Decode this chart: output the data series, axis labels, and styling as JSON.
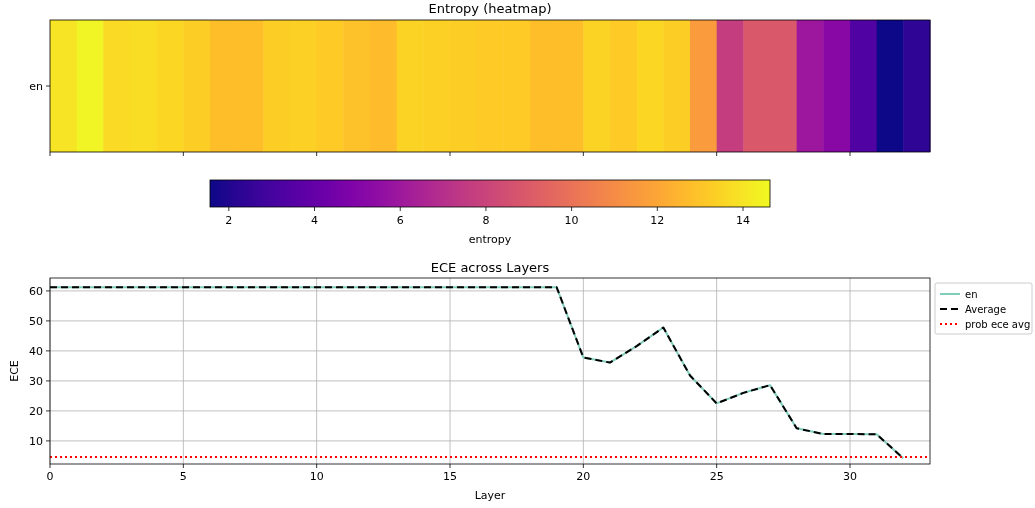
{
  "chart_data": [
    {
      "type": "heatmap",
      "title": "Entropy (heatmap)",
      "categories": [
        null,
        null,
        null,
        null,
        null,
        null,
        null,
        null,
        null,
        null,
        null,
        null,
        null,
        null,
        null,
        null,
        null,
        null,
        null,
        null,
        null,
        null,
        null,
        null,
        null,
        null,
        null,
        null,
        null,
        null,
        null,
        null,
        null
      ],
      "y_categories": [
        "en"
      ],
      "cells": [
        [
          14.0,
          14.5,
          13.7,
          13.8,
          13.6,
          13.3,
          12.8,
          12.8,
          13.3,
          13.4,
          13.2,
          12.9,
          12.7,
          13.5,
          13.4,
          13.3,
          13.2,
          13.2,
          12.8,
          12.8,
          13.5,
          13.2,
          13.6,
          13.3,
          11.6,
          7.7,
          8.9,
          8.9,
          5.9,
          5.2,
          3.3,
          1.6,
          2.3
        ]
      ],
      "clim": [
        1.56,
        14.63
      ],
      "cticks": [
        2,
        4,
        6,
        8,
        10,
        12,
        14
      ],
      "clabel": "entropy"
    },
    {
      "type": "line",
      "title": "ECE across Layers",
      "xlabel": "Layer",
      "ylabel": "ECE",
      "x": [
        0,
        1,
        2,
        3,
        4,
        5,
        6,
        7,
        8,
        9,
        10,
        11,
        12,
        13,
        14,
        15,
        16,
        17,
        18,
        19,
        20,
        21,
        22,
        23,
        24,
        25,
        26,
        27,
        28,
        29,
        30,
        31,
        32
      ],
      "series": [
        {
          "name": "en",
          "color": "#7fcdbb",
          "line_style": "solid",
          "values": [
            61.2,
            61.2,
            61.2,
            61.2,
            61.2,
            61.2,
            61.2,
            61.2,
            61.2,
            61.2,
            61.2,
            61.2,
            61.2,
            61.2,
            61.2,
            61.2,
            61.2,
            61.2,
            61.2,
            61.2,
            37.8,
            36.1,
            41.6,
            47.8,
            31.8,
            22.5,
            26.0,
            28.6,
            14.2,
            12.3,
            12.3,
            12.2,
            4.2
          ]
        },
        {
          "name": "Average",
          "color": "#000000",
          "line_style": "dashed",
          "values": [
            61.2,
            61.2,
            61.2,
            61.2,
            61.2,
            61.2,
            61.2,
            61.2,
            61.2,
            61.2,
            61.2,
            61.2,
            61.2,
            61.2,
            61.2,
            61.2,
            61.2,
            61.2,
            61.2,
            61.2,
            37.8,
            36.1,
            41.6,
            47.8,
            31.8,
            22.5,
            26.0,
            28.6,
            14.2,
            12.3,
            12.3,
            12.2,
            4.2
          ]
        }
      ],
      "ref_lines": [
        {
          "axis": "y",
          "value": 4.6,
          "label": "prob ece avg",
          "color": "#ff0000",
          "line_style": "dotted"
        }
      ],
      "xlim": [
        0,
        33
      ],
      "xticks": [
        0,
        5,
        10,
        15,
        20,
        25,
        30
      ],
      "ylim": [
        2.3,
        64.3
      ],
      "yticks": [
        10,
        20,
        30,
        40,
        50,
        60
      ],
      "grid": true,
      "legend": "top right"
    }
  ]
}
